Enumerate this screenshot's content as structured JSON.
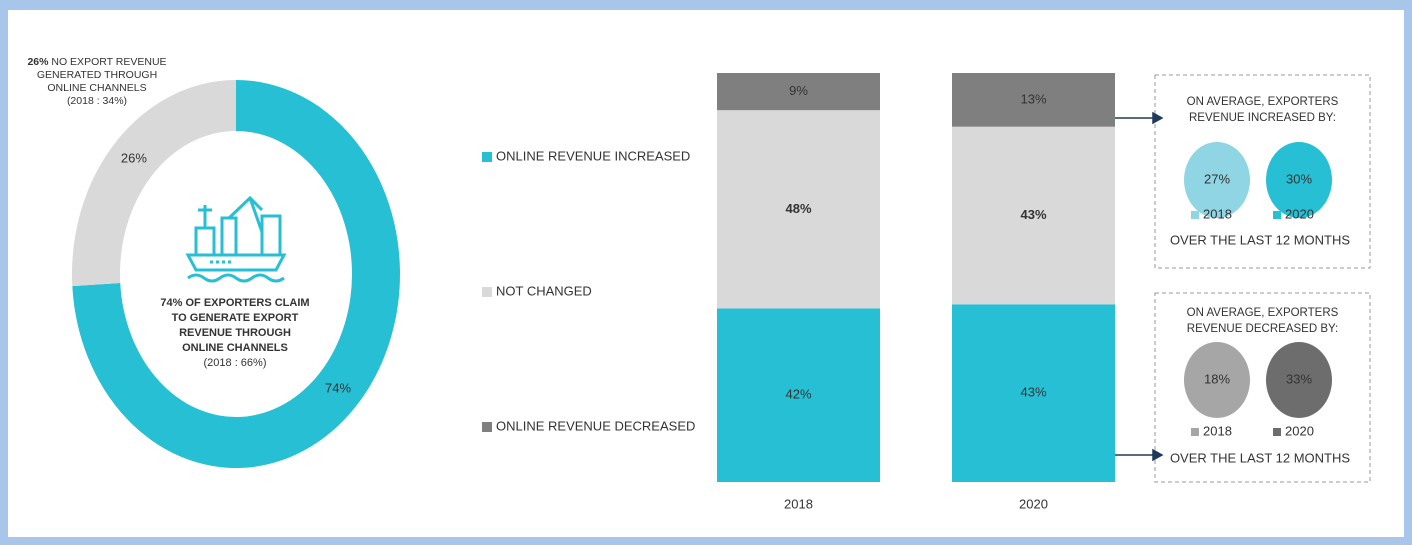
{
  "chart_data": [
    {
      "type": "pie",
      "donut": true,
      "values": [
        74,
        26
      ],
      "value_labels": [
        "74%",
        "26%"
      ],
      "colors": [
        "#26bfd4",
        "#d9d9d9"
      ],
      "note_bold": "26%",
      "note": "NO EXPORT REVENUE GENERATED THROUGH ONLINE CHANNELS",
      "note_sub": "(2018 : 34%)",
      "center_text": "74% OF EXPORTERS CLAIM TO GENERATE EXPORT REVENUE THROUGH ONLINE CHANNELS",
      "center_sub": "(2018 : 66%)"
    },
    {
      "type": "bar",
      "stacked": true,
      "categories": [
        "2018",
        "2020"
      ],
      "series": [
        {
          "name": "ONLINE REVENUE INCREASED",
          "color": "#26bfd4",
          "values": [
            42,
            43
          ],
          "value_labels": [
            "42%",
            "43%"
          ]
        },
        {
          "name": "NOT CHANGED",
          "color": "#d9d9d9",
          "values": [
            48,
            43
          ],
          "value_labels": [
            "48%",
            "43%"
          ]
        },
        {
          "name": "ONLINE REVENUE DECREASED",
          "color": "#7f7f7f",
          "values": [
            9,
            13
          ],
          "value_labels": [
            "9%",
            "13%"
          ]
        }
      ]
    }
  ],
  "callouts": [
    {
      "title": "ON AVERAGE, EXPORTERS REVENUE INCREASED BY:",
      "footer": "OVER THE LAST 12 MONTHS",
      "items": [
        {
          "label": "2018",
          "value": "27%",
          "color": "#8fd5e3"
        },
        {
          "label": "2020",
          "value": "30%",
          "color": "#26bfd4"
        }
      ]
    },
    {
      "title": "ON AVERAGE, EXPORTERS REVENUE DECREASED BY:",
      "footer": "OVER THE LAST 12 MONTHS",
      "items": [
        {
          "label": "2018",
          "value": "18%",
          "color": "#a6a6a6"
        },
        {
          "label": "2020",
          "value": "33%",
          "color": "#6d6d6d"
        }
      ]
    }
  ]
}
